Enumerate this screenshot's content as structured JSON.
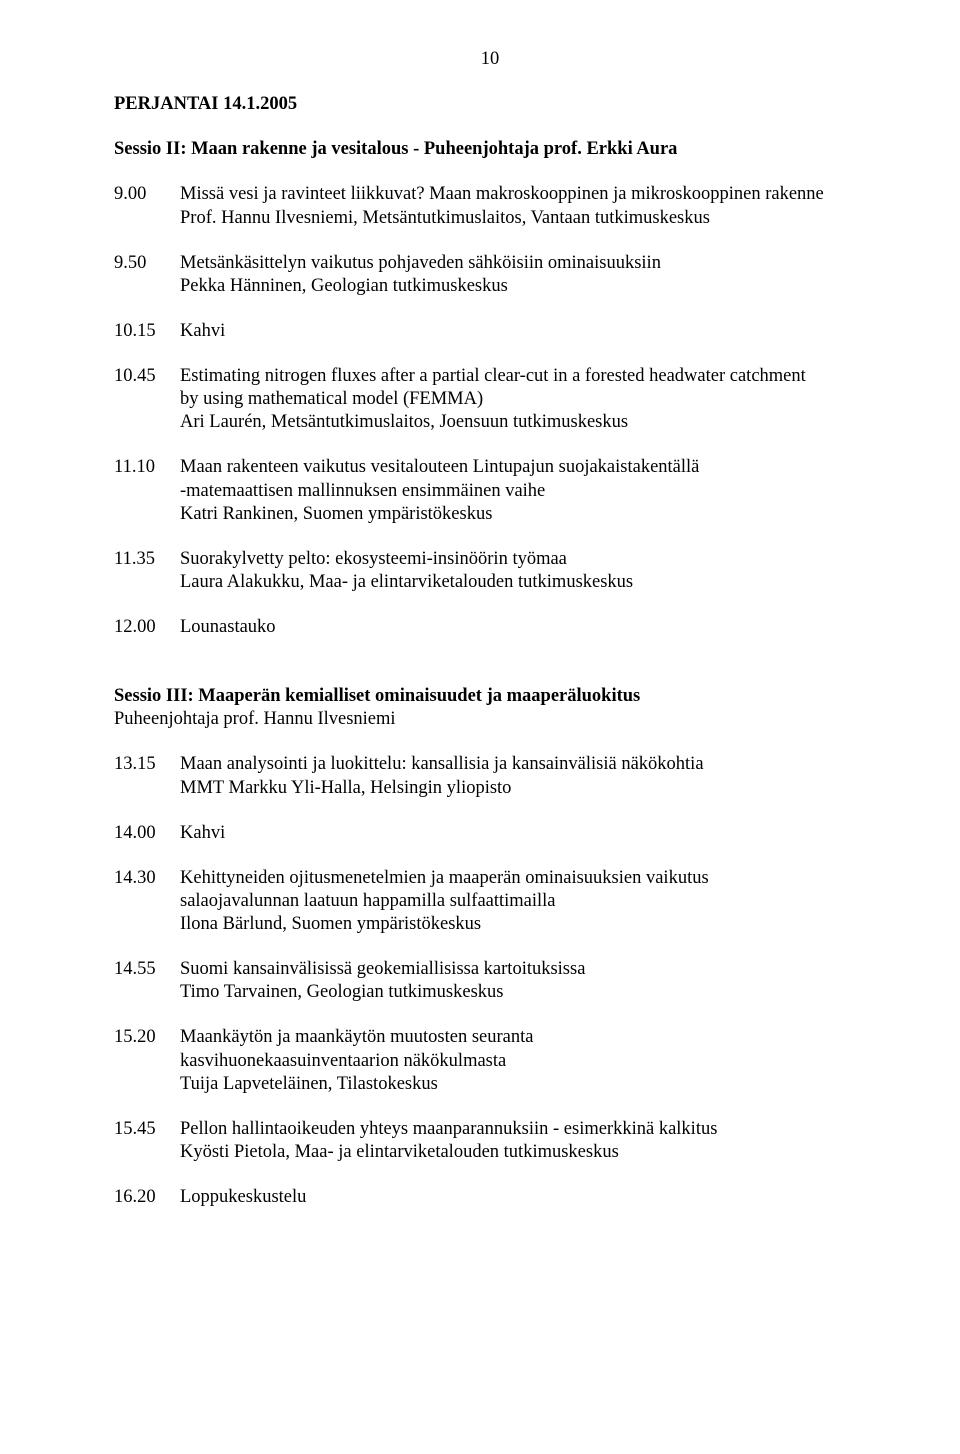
{
  "page_number": "10",
  "date_heading": "PERJANTAI 14.1.2005",
  "session2": {
    "title": "Sessio II: Maan rakenne ja vesitalous - Puheenjohtaja prof. Erkki Aura",
    "items": [
      {
        "time": "9.00",
        "lines": [
          "Missä vesi ja ravinteet liikkuvat? Maan makroskooppinen ja mikroskooppinen rakenne",
          "Prof. Hannu Ilvesniemi, Metsäntutkimuslaitos, Vantaan tutkimuskeskus"
        ]
      },
      {
        "time": "9.50",
        "lines": [
          "Metsänkäsittelyn vaikutus pohjaveden sähköisiin ominaisuuksiin",
          "Pekka Hänninen, Geologian tutkimuskeskus"
        ]
      },
      {
        "time": "10.15",
        "lines": [
          "Kahvi"
        ]
      },
      {
        "time": "10.45",
        "lines": [
          "Estimating nitrogen fluxes after a partial clear-cut in a forested headwater catchment",
          "by using mathematical model (FEMMA)",
          "Ari Laurén, Metsäntutkimuslaitos, Joensuun tutkimuskeskus"
        ]
      },
      {
        "time": "11.10",
        "lines": [
          "Maan rakenteen vaikutus vesitalouteen Lintupajun suojakaistakentällä",
          "-matemaattisen mallinnuksen ensimmäinen vaihe",
          "Katri Rankinen, Suomen ympäristökeskus"
        ]
      },
      {
        "time": "11.35",
        "lines": [
          "Suorakylvetty pelto: ekosysteemi-insinöörin työmaa",
          "Laura Alakukku, Maa- ja elintarviketalouden tutkimuskeskus"
        ]
      },
      {
        "time": "12.00",
        "lines": [
          "Lounastauko"
        ]
      }
    ]
  },
  "session3": {
    "title": "Sessio III: Maaperän kemialliset ominaisuudet ja maaperäluokitus",
    "chair": "Puheenjohtaja prof. Hannu Ilvesniemi",
    "items": [
      {
        "time": "13.15",
        "lines": [
          "Maan analysointi ja luokittelu: kansallisia ja kansainvälisiä näkökohtia",
          "MMT Markku Yli-Halla, Helsingin yliopisto"
        ]
      },
      {
        "time": "14.00",
        "lines": [
          "Kahvi"
        ]
      },
      {
        "time": "14.30",
        "lines": [
          "Kehittyneiden ojitusmenetelmien ja maaperän ominaisuuksien vaikutus",
          "salaojavalunnan laatuun happamilla sulfaattimailla",
          "Ilona Bärlund, Suomen ympäristökeskus"
        ]
      },
      {
        "time": "14.55",
        "lines": [
          "Suomi kansainvälisissä geokemiallisissa kartoituksissa",
          "Timo Tarvainen, Geologian tutkimuskeskus"
        ]
      },
      {
        "time": "15.20",
        "lines": [
          "Maankäytön ja maankäytön muutosten seuranta",
          "kasvihuonekaasuinventaarion näkökulmasta",
          "Tuija Lapveteläinen, Tilastokeskus"
        ]
      },
      {
        "time": "15.45",
        "lines": [
          "Pellon hallintaoikeuden yhteys  maanparannuksiin - esimerkkinä kalkitus",
          "Kyösti Pietola, Maa- ja elintarviketalouden tutkimuskeskus"
        ]
      },
      {
        "time": "16.20",
        "lines": [
          "Loppukeskustelu"
        ]
      }
    ]
  }
}
